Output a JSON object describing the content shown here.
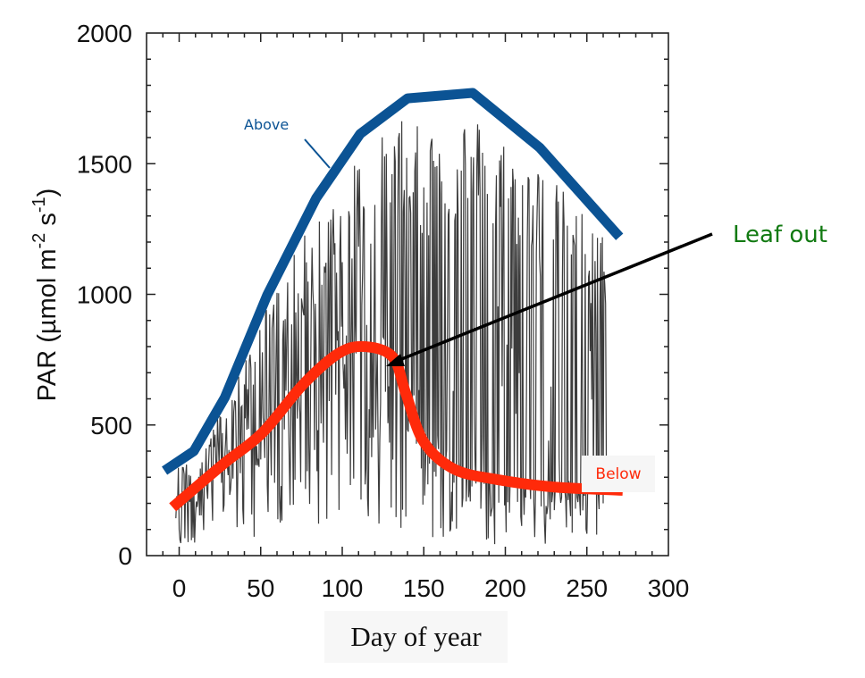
{
  "chart_data": {
    "type": "line",
    "title": "",
    "xlabel": "Day of year",
    "ylabel": "PAR (µmol m-2 s-1)",
    "ylabel_parts": {
      "main": "PAR (µmol m",
      "sup1": "-2",
      "mid": " s",
      "sup2": "-1",
      "end": ")"
    },
    "xlim": [
      -20,
      300
    ],
    "ylim": [
      0,
      2000
    ],
    "x_ticks": [
      0,
      50,
      100,
      150,
      200,
      250,
      300
    ],
    "x_tick_labels": [
      "0",
      "50",
      "100",
      "150",
      "200",
      "250",
      "300"
    ],
    "y_ticks": [
      0,
      500,
      1000,
      1500,
      2000
    ],
    "y_tick_labels": [
      "0",
      "500",
      "1000",
      "1500",
      "2000"
    ],
    "x_minor_step": 10,
    "y_minor_step": 100,
    "grid": false,
    "series": [
      {
        "name": "Above",
        "color": "#0b5394",
        "style": "envelope",
        "x": [
          -9,
          9,
          28,
          54,
          84,
          111,
          140,
          180,
          221,
          270
        ],
        "y": [
          325,
          400,
          605,
          998,
          1368,
          1614,
          1750,
          1771,
          1562,
          1220
        ]
      },
      {
        "name": "Below",
        "color": "#ff2a0a",
        "style": "envelope-smooth",
        "x": [
          -4,
          27,
          51,
          76,
          98,
          114,
          131,
          139,
          150,
          169,
          196,
          229,
          272
        ],
        "y": [
          185,
          350,
          470,
          655,
          775,
          800,
          760,
          620,
          435,
          330,
          290,
          263,
          250
        ]
      },
      {
        "name": "Daily PAR (raw trace)",
        "color": "#1a1a1a",
        "style": "noisy-trace",
        "x_range": [
          -2,
          262
        ]
      }
    ],
    "annotations": [
      {
        "text": "Above",
        "color": "#0b5394",
        "points_to": {
          "x": 72,
          "y": 1180
        }
      },
      {
        "text": "Below",
        "color": "#ff2a0a"
      },
      {
        "text": "Leaf out",
        "color": "#127a12",
        "arrow_to": {
          "x": 126,
          "y": 725
        }
      }
    ]
  }
}
